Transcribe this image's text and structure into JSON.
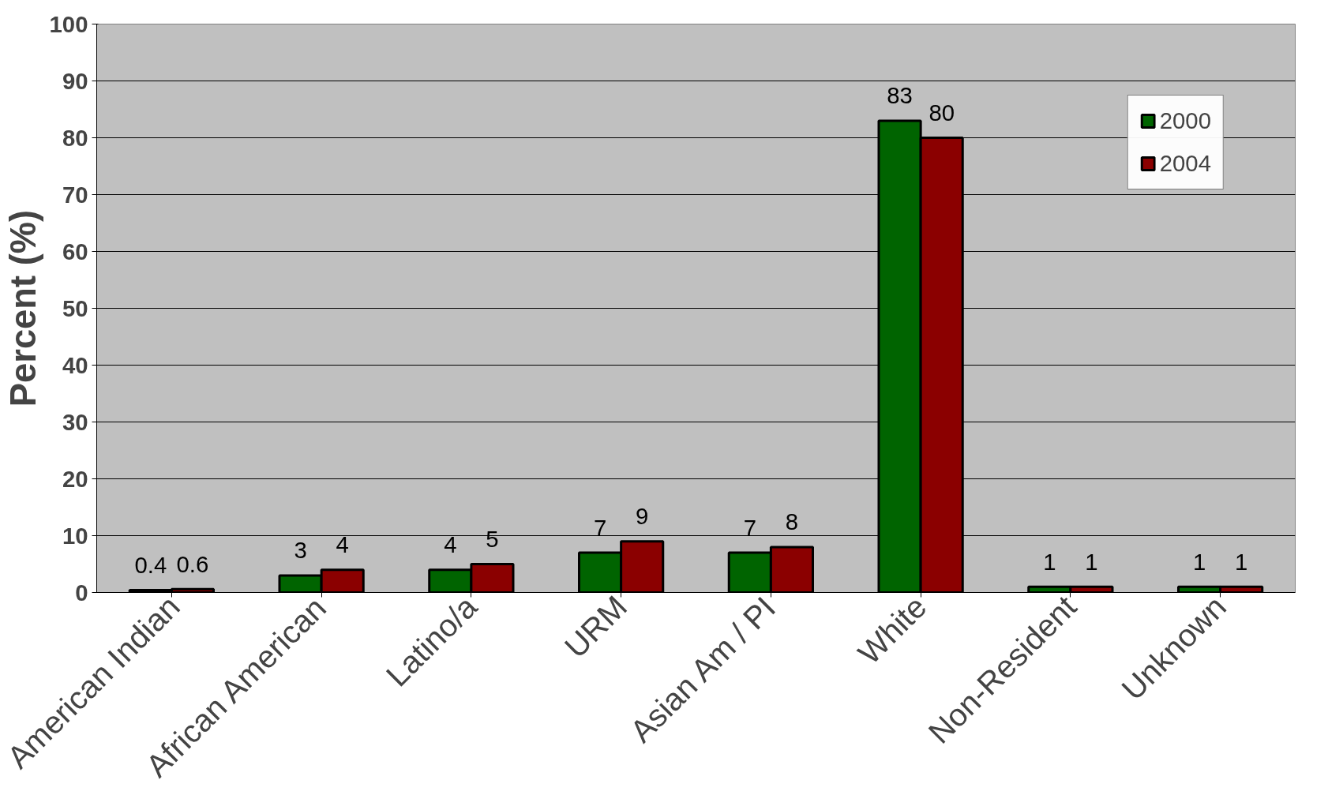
{
  "chart_data": {
    "type": "bar",
    "ylabel": "Percent (%)",
    "categories": [
      "American Indian",
      "African American",
      "Latino/a",
      "URM",
      "Asian Am / PI",
      "White",
      "Non-Resident",
      "Unknown"
    ],
    "series": [
      {
        "name": "2000",
        "color": "#006400",
        "values": [
          0.4,
          3,
          4,
          7,
          7,
          83,
          1,
          1
        ]
      },
      {
        "name": "2004",
        "color": "#8b0000",
        "values": [
          0.6,
          4,
          5,
          9,
          8,
          80,
          1,
          1
        ]
      }
    ],
    "ylim": [
      0,
      100
    ],
    "yticks": [
      0,
      10,
      20,
      30,
      40,
      50,
      60,
      70,
      80,
      90,
      100
    ],
    "grid": "y",
    "legend": "top right",
    "data_labels": true
  }
}
